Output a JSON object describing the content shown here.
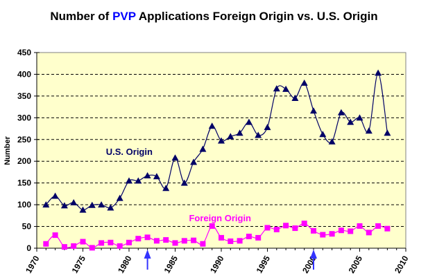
{
  "chart_data": {
    "type": "line",
    "title_parts": [
      "Number of ",
      "PVP",
      " Applications Foreign Origin vs. U.S. Origin"
    ],
    "title": "Number of PVP Applications Foreign Origin vs. U.S. Origin",
    "xlabel": "",
    "ylabel": "Number",
    "xlim": [
      1970,
      2010
    ],
    "ylim": [
      0,
      450
    ],
    "xticks": [
      1970,
      1975,
      1980,
      1985,
      1990,
      1995,
      2000,
      2005,
      2010
    ],
    "yticks": [
      0,
      50,
      100,
      150,
      200,
      250,
      300,
      350,
      400,
      450
    ],
    "grid": "horizontal dashed",
    "plot_background": "#ffffcc",
    "x": [
      1971,
      1972,
      1973,
      1974,
      1975,
      1976,
      1977,
      1978,
      1979,
      1980,
      1981,
      1982,
      1983,
      1984,
      1985,
      1986,
      1987,
      1988,
      1989,
      1990,
      1991,
      1992,
      1993,
      1994,
      1995,
      1996,
      1997,
      1998,
      1999,
      2000,
      2001,
      2002,
      2003,
      2004,
      2005,
      2006,
      2007,
      2008
    ],
    "series": [
      {
        "name": "U.S. Origin",
        "color": "#000066",
        "marker": "triangle",
        "values": [
          100,
          120,
          98,
          105,
          88,
          99,
          100,
          93,
          115,
          155,
          155,
          167,
          165,
          138,
          208,
          150,
          198,
          228,
          281,
          247,
          257,
          265,
          290,
          260,
          278,
          367,
          366,
          345,
          380,
          316,
          262,
          245,
          312,
          290,
          300,
          270,
          403,
          265
        ]
      },
      {
        "name": "Foreign Origin",
        "color": "#ff00ff",
        "marker": "square",
        "values": [
          10,
          30,
          3,
          5,
          15,
          1,
          12,
          13,
          5,
          13,
          22,
          25,
          17,
          19,
          12,
          17,
          18,
          10,
          51,
          24,
          16,
          17,
          27,
          24,
          47,
          43,
          52,
          46,
          57,
          40,
          31,
          33,
          41,
          39,
          51,
          36,
          51,
          45
        ]
      }
    ],
    "annotations": [
      {
        "text": "U.S. Origin",
        "color": "#000066",
        "x": 1977.5,
        "y": 215
      },
      {
        "text": "Foreign Origin",
        "color": "#ff00ff",
        "x": 1986.5,
        "y": 62
      }
    ],
    "arrows": [
      {
        "x": 1982,
        "color": "#3333ff",
        "direction": "up"
      },
      {
        "x": 2000,
        "color": "#3333ff",
        "direction": "up"
      }
    ]
  }
}
